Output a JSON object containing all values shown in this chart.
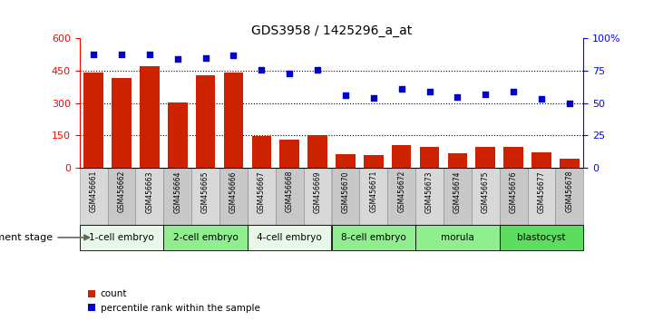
{
  "title": "GDS3958 / 1425296_a_at",
  "samples": [
    "GSM456661",
    "GSM456662",
    "GSM456663",
    "GSM456664",
    "GSM456665",
    "GSM456666",
    "GSM456667",
    "GSM456668",
    "GSM456669",
    "GSM456670",
    "GSM456671",
    "GSM456672",
    "GSM456673",
    "GSM456674",
    "GSM456675",
    "GSM456676",
    "GSM456677",
    "GSM456678"
  ],
  "counts": [
    440,
    415,
    470,
    305,
    430,
    440,
    148,
    130,
    150,
    62,
    58,
    105,
    98,
    68,
    98,
    98,
    72,
    42
  ],
  "percentiles": [
    88,
    88,
    88,
    84,
    85,
    87,
    76,
    73,
    76,
    56,
    54,
    61,
    59,
    55,
    57,
    59,
    53,
    50
  ],
  "stages": [
    {
      "label": "1-cell embryo",
      "start": 0,
      "end": 3
    },
    {
      "label": "2-cell embryo",
      "start": 3,
      "end": 6
    },
    {
      "label": "4-cell embryo",
      "start": 6,
      "end": 9
    },
    {
      "label": "8-cell embryo",
      "start": 9,
      "end": 12
    },
    {
      "label": "morula",
      "start": 12,
      "end": 15
    },
    {
      "label": "blastocyst",
      "start": 15,
      "end": 18
    }
  ],
  "stage_colors": [
    "#e8f8e8",
    "#90EE90",
    "#e8f8e8",
    "#90EE90",
    "#90EE90",
    "#5ddd5d"
  ],
  "bar_color": "#CC2200",
  "dot_color": "#0000CC",
  "ylim_left": [
    0,
    600
  ],
  "ylim_right": [
    0,
    100
  ],
  "yticks_left": [
    0,
    150,
    300,
    450,
    600
  ],
  "yticks_right": [
    0,
    25,
    50,
    75,
    100
  ],
  "hlines": [
    150,
    300,
    450
  ],
  "background_color": "#ffffff"
}
